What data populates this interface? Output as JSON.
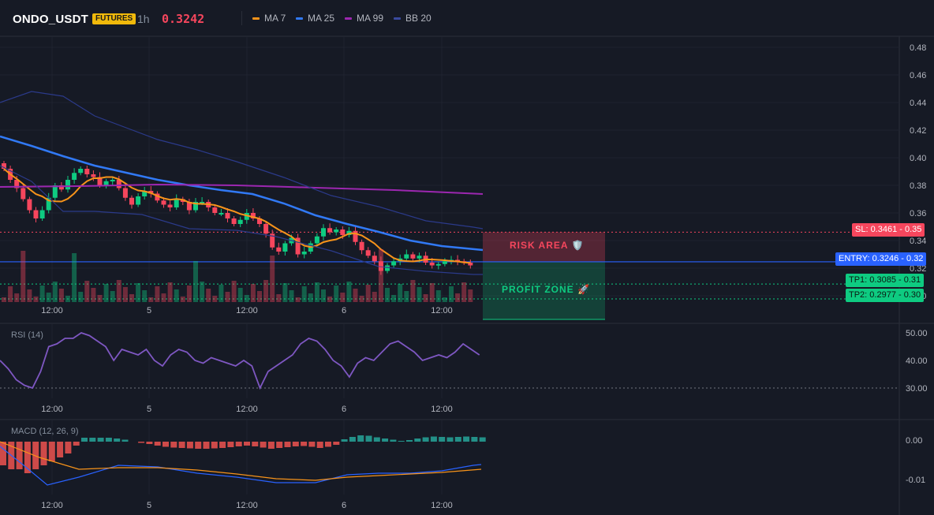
{
  "header": {
    "symbol": "ONDO_USDT",
    "badge": "FUTURES",
    "timeframe": "1h",
    "price": "0.3242",
    "legend": [
      {
        "label": "MA 7",
        "color": "#f7931a"
      },
      {
        "label": "MA 25",
        "color": "#3179f5"
      },
      {
        "label": "MA 99",
        "color": "#9c27b0"
      },
      {
        "label": "BB 20",
        "color": "#3a4a9f"
      }
    ]
  },
  "price_axis": {
    "ticks": [
      "0.48",
      "0.46",
      "0.44",
      "0.42",
      "0.40",
      "0.38",
      "0.36",
      "0.34",
      "0.32",
      "0.30"
    ]
  },
  "time_axis": {
    "ticks": [
      "12:00",
      "5",
      "12:00",
      "6",
      "12:00"
    ]
  },
  "levels": {
    "sl": {
      "label": "SL: 0.3461",
      "value": 0.3461,
      "axis": "0.35",
      "color": "#f6465d"
    },
    "entry": {
      "label": "ENTRY: 0.3246",
      "value": 0.3246,
      "axis": "0.32",
      "color": "#2962ff"
    },
    "tp1": {
      "label": "TP1: 0.3085",
      "value": 0.3085,
      "axis": "0.31",
      "color": "#0ecb81"
    },
    "tp2": {
      "label": "TP2: 0.2977",
      "value": 0.2977,
      "axis": "0.30",
      "color": "#0ecb81"
    }
  },
  "zones": {
    "risk": "RISK AREA 🛡️",
    "profit": "PROFIT ZONE 🚀"
  },
  "rsi": {
    "title": "RSI (14)",
    "ticks": [
      "50.00",
      "40.00",
      "30.00"
    ]
  },
  "macd": {
    "title": "MACD (12, 26, 9)",
    "ticks": [
      "0.00",
      "-0.01"
    ]
  }
}
